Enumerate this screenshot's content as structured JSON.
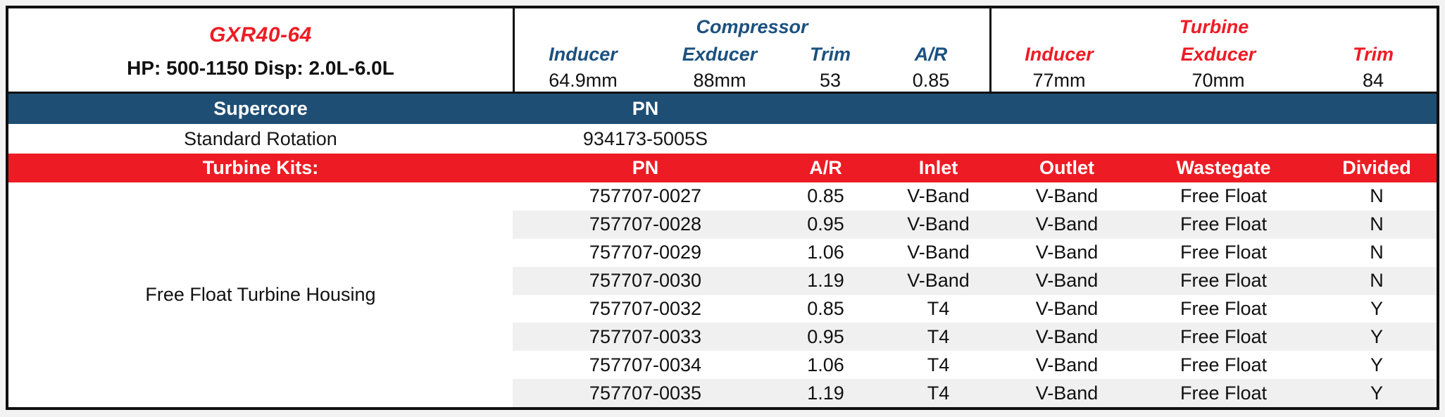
{
  "product": {
    "model": "GXR40-64",
    "subtitle": "HP: 500-1150 Disp: 2.0L-6.0L"
  },
  "compressor": {
    "title": "Compressor",
    "headers": [
      "Inducer",
      "Exducer",
      "Trim",
      "A/R"
    ],
    "values": [
      "64.9mm",
      "88mm",
      "53",
      "0.85"
    ]
  },
  "turbine": {
    "title": "Turbine",
    "headers": [
      "Inducer",
      "Exducer",
      "Trim"
    ],
    "values": [
      "77mm",
      "70mm",
      "84"
    ]
  },
  "supercore": {
    "label": "Supercore",
    "pn_header": "PN",
    "row_label": "Standard Rotation",
    "pn": "934173-5005S"
  },
  "kits": {
    "label": "Turbine Kits:",
    "headers": [
      "PN",
      "A/R",
      "Inlet",
      "Outlet",
      "Wastegate",
      "Divided"
    ],
    "group_label": "Free Float Turbine Housing",
    "rows": [
      {
        "pn": "757707-0027",
        "ar": "0.85",
        "inlet": "V-Band",
        "outlet": "V-Band",
        "wastegate": "Free Float",
        "divided": "N"
      },
      {
        "pn": "757707-0028",
        "ar": "0.95",
        "inlet": "V-Band",
        "outlet": "V-Band",
        "wastegate": "Free Float",
        "divided": "N"
      },
      {
        "pn": "757707-0029",
        "ar": "1.06",
        "inlet": "V-Band",
        "outlet": "V-Band",
        "wastegate": "Free Float",
        "divided": "N"
      },
      {
        "pn": "757707-0030",
        "ar": "1.19",
        "inlet": "V-Band",
        "outlet": "V-Band",
        "wastegate": "Free Float",
        "divided": "N"
      },
      {
        "pn": "757707-0032",
        "ar": "0.85",
        "inlet": "T4",
        "outlet": "V-Band",
        "wastegate": "Free Float",
        "divided": "Y"
      },
      {
        "pn": "757707-0033",
        "ar": "0.95",
        "inlet": "T4",
        "outlet": "V-Band",
        "wastegate": "Free Float",
        "divided": "Y"
      },
      {
        "pn": "757707-0034",
        "ar": "1.06",
        "inlet": "T4",
        "outlet": "V-Band",
        "wastegate": "Free Float",
        "divided": "Y"
      },
      {
        "pn": "757707-0035",
        "ar": "1.19",
        "inlet": "T4",
        "outlet": "V-Band",
        "wastegate": "Free Float",
        "divided": "Y"
      }
    ]
  },
  "colors": {
    "brand_blue": "#1f4e74",
    "brand_red": "#ed1c24",
    "text_blue": "#1c5180",
    "text_red": "#ee1c25",
    "stripe": "#f0f0f1"
  }
}
